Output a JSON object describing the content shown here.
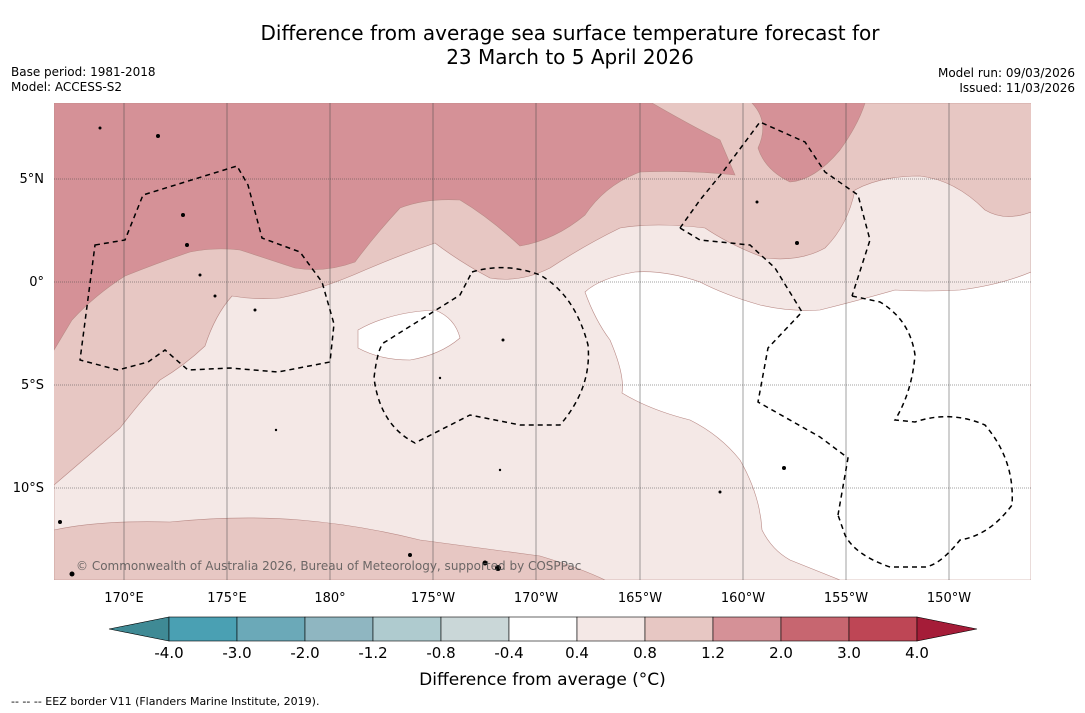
{
  "title": {
    "line1": "Difference from average sea surface temperature forecast for",
    "line2": "23 March to 5 April 2026"
  },
  "meta": {
    "base_period": "Base period: 1981-2018",
    "model": "Model: ACCESS-S2",
    "model_run": "Model run: 09/03/2026",
    "issued": "Issued: 11/03/2026"
  },
  "map": {
    "copyright": "© Commonwealth of Australia 2026, Bureau of Meteorology, supported by COSPPac",
    "lat_labels": [
      "5°N",
      "0°",
      "5°S",
      "10°S"
    ],
    "lon_labels": [
      "170°E",
      "175°E",
      "180°",
      "175°W",
      "170°W",
      "165°W",
      "160°W",
      "155°W",
      "150°W"
    ],
    "colors": {
      "band_warm_2": "#d59197",
      "band_warm_1": "#e7c7c3",
      "band_warm_0": "#f4e8e6",
      "band_neutral": "#ffffff",
      "gridline": "#444444"
    }
  },
  "colorbar": {
    "tick_labels": [
      "-4.0",
      "-3.0",
      "-2.0",
      "-1.2",
      "-0.8",
      "-0.4",
      "0.4",
      "0.8",
      "1.2",
      "2.0",
      "3.0",
      "4.0"
    ],
    "segment_colors": [
      "#3f8a95",
      "#4aa0b3",
      "#6ba9b8",
      "#8fb6c1",
      "#afcbcf",
      "#cad7d8",
      "#ffffff",
      "#f4e8e6",
      "#e7c7c3",
      "#d59197",
      "#c76670",
      "#be4655",
      "#a51c38"
    ],
    "label": "Difference from average (°C)"
  },
  "footnote": "--  --  -- EEZ border V11 (Flanders Marine Institute, 2019)."
}
